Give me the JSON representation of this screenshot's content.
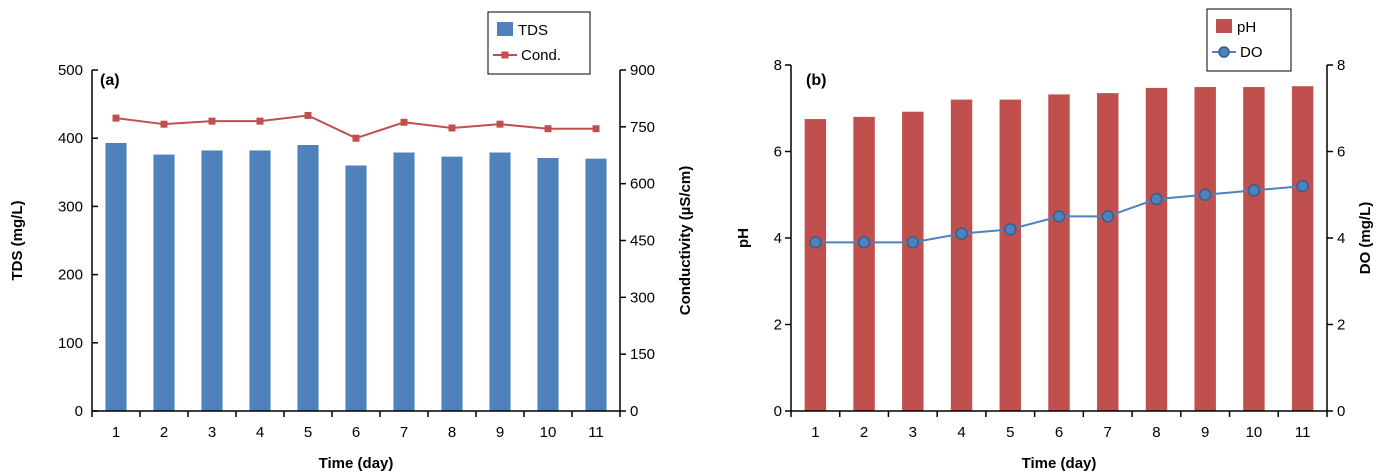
{
  "chart_data": [
    {
      "type": "bar",
      "panel_label": "(a)",
      "categories": [
        "1",
        "2",
        "3",
        "4",
        "5",
        "6",
        "7",
        "8",
        "9",
        "10",
        "11"
      ],
      "series": [
        {
          "name": "TDS",
          "kind": "bar",
          "axis": "left",
          "color": "#4f81bd",
          "values": [
            393,
            376,
            382,
            382,
            390,
            360,
            379,
            373,
            379,
            371,
            370
          ]
        },
        {
          "name": "Cond.",
          "kind": "line",
          "axis": "right",
          "color": "#c0504d",
          "values": [
            773,
            757,
            765,
            765,
            780,
            720,
            762,
            747,
            757,
            745,
            745
          ]
        }
      ],
      "xlabel": "Time (day)",
      "ylabel": "TDS (mg/L)",
      "y2label": "Conductivity (µS/cm)",
      "ylim": [
        0,
        500
      ],
      "yticks": [
        0,
        100,
        200,
        300,
        400,
        500
      ],
      "y2lim": [
        0,
        900
      ],
      "y2ticks": [
        0,
        150,
        300,
        450,
        600,
        750,
        900
      ],
      "grid": false,
      "legend": "top-right"
    },
    {
      "type": "bar",
      "panel_label": "(b)",
      "categories": [
        "1",
        "2",
        "3",
        "4",
        "5",
        "6",
        "7",
        "8",
        "9",
        "10",
        "11"
      ],
      "series": [
        {
          "name": "pH",
          "kind": "bar",
          "axis": "left",
          "color": "#c0504d",
          "values": [
            6.75,
            6.8,
            6.92,
            7.2,
            7.2,
            7.32,
            7.35,
            7.47,
            7.49,
            7.49,
            7.51
          ]
        },
        {
          "name": "DO",
          "kind": "line",
          "axis": "right",
          "color": "#4f81bd",
          "values": [
            3.9,
            3.9,
            3.9,
            4.1,
            4.2,
            4.5,
            4.5,
            4.9,
            5.0,
            5.1,
            5.2
          ]
        }
      ],
      "xlabel": "Time (day)",
      "ylabel": "pH",
      "y2label": "DO (mg/L)",
      "ylim": [
        0,
        8
      ],
      "yticks": [
        0,
        2,
        4,
        6,
        8
      ],
      "y2lim": [
        0,
        8
      ],
      "y2ticks": [
        0,
        2,
        4,
        6,
        8
      ],
      "grid": false,
      "legend": "top-right"
    }
  ]
}
